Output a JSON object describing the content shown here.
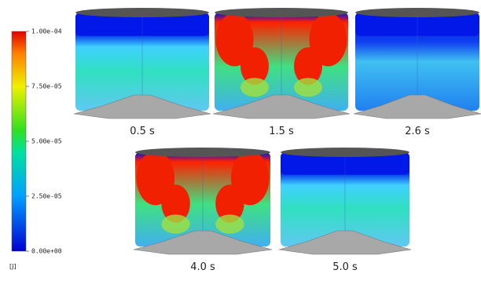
{
  "colorbar": {
    "ticks": [
      "1.00e-04",
      "7.50e-05",
      "5.00e-05",
      "2.50e-05",
      "0.00e+00"
    ],
    "unit": "[J]"
  },
  "panels": [
    {
      "label": "0.5 s"
    },
    {
      "label": "1.5 s"
    },
    {
      "label": "2.6 s"
    },
    {
      "label": "4.0 s"
    },
    {
      "label": "5.0 s"
    }
  ]
}
